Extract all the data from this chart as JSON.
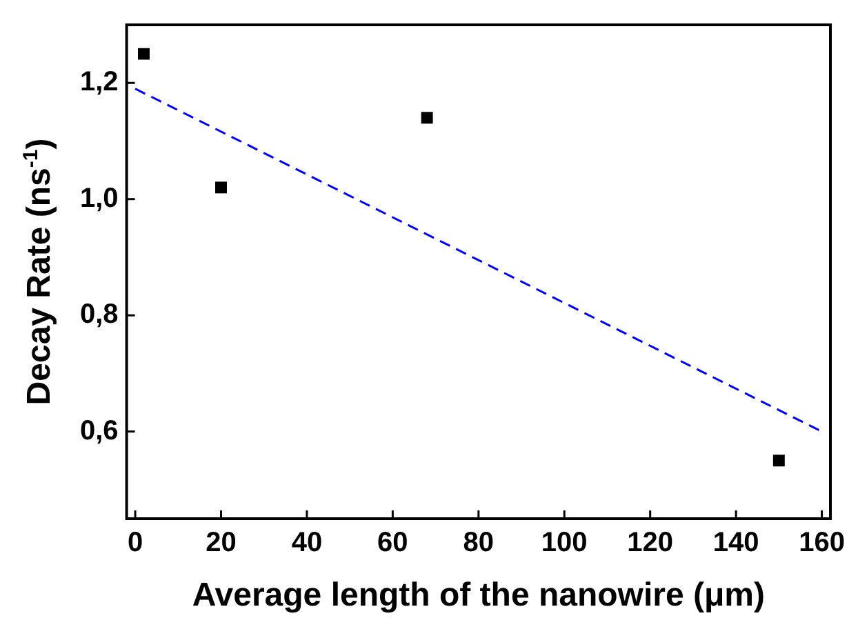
{
  "chart_data": {
    "type": "scatter",
    "xlabel": "Average length of the nanowire (μm)",
    "ylabel": "Decay Rate (ns$^{-1}$)",
    "marker": "square",
    "legend": false,
    "grid": false,
    "xlim": [
      -2,
      162
    ],
    "xticks": [
      0,
      20,
      40,
      60,
      80,
      100,
      120,
      140,
      160
    ],
    "ylim": [
      0.45,
      1.3
    ],
    "yticks": [
      {
        "value": 0.6,
        "label": "0,6"
      },
      {
        "value": 0.8,
        "label": "0,8"
      },
      {
        "value": 1.0,
        "label": "1,0"
      },
      {
        "value": 1.2,
        "label": "1,2"
      }
    ],
    "series": [
      {
        "type": "scatter",
        "color": "#000000",
        "x": [
          2,
          20,
          68,
          150
        ],
        "values": [
          1.25,
          1.02,
          1.14,
          0.55
        ]
      },
      {
        "type": "line",
        "color": "#0000ff",
        "line_style": "dashed",
        "marker": "none",
        "x": [
          0,
          160
        ],
        "values": [
          1.19,
          0.6
        ]
      }
    ]
  }
}
